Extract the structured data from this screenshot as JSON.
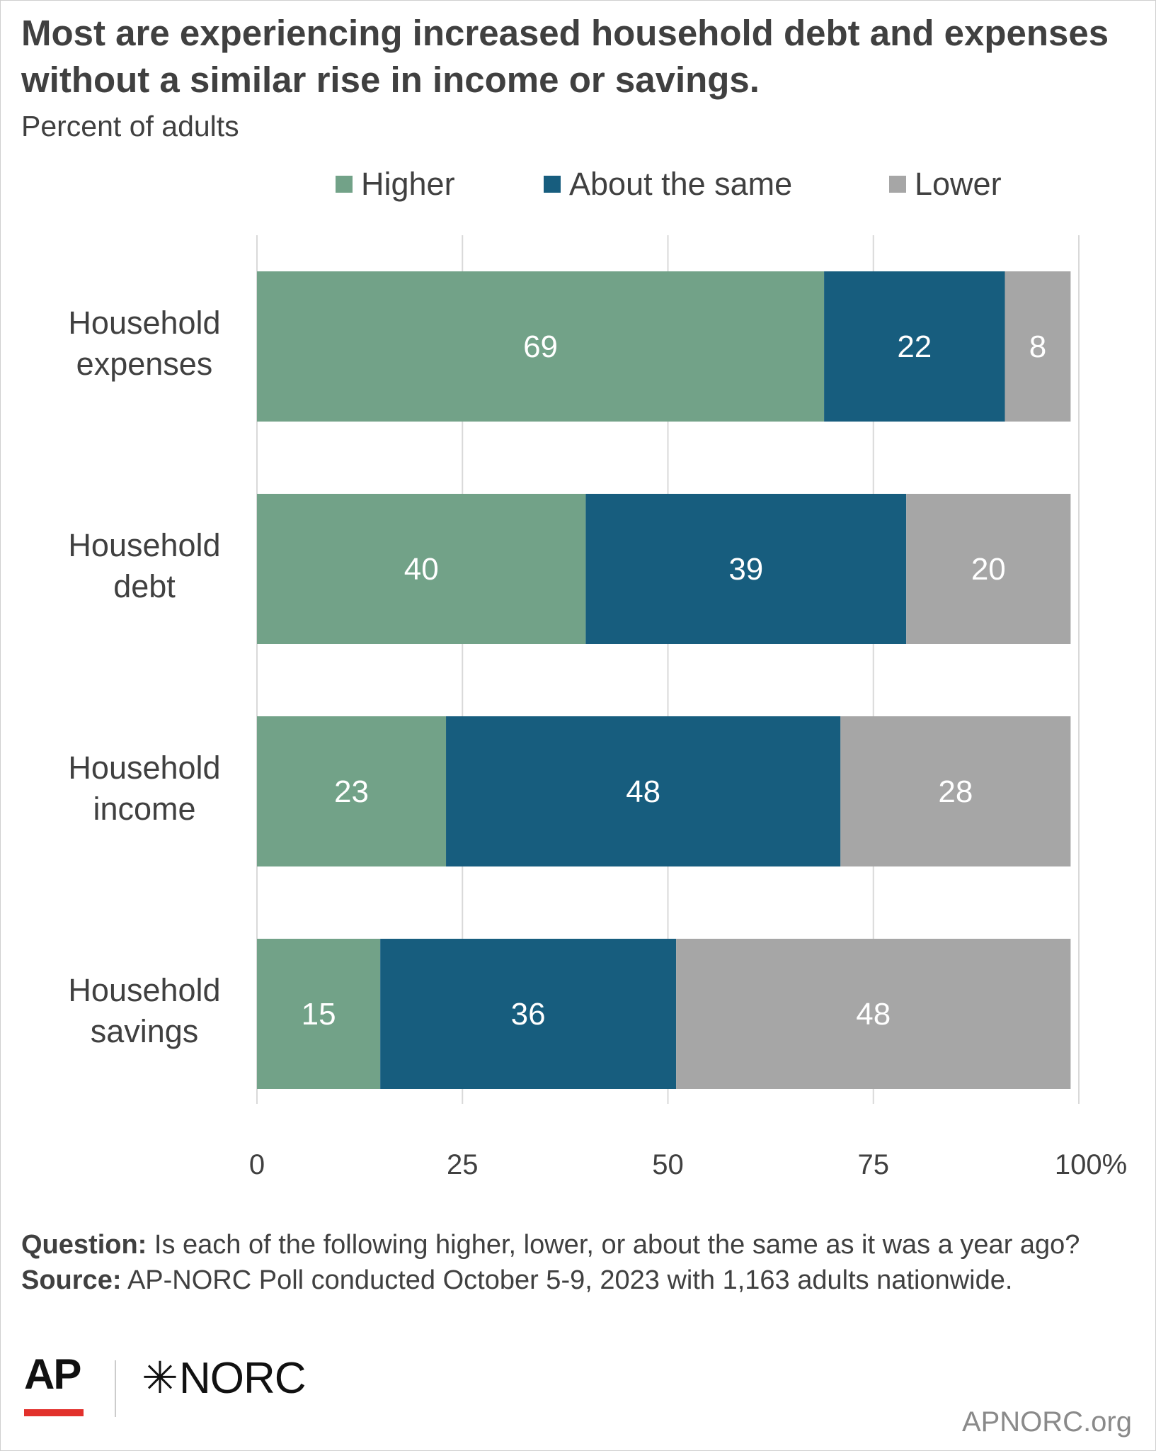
{
  "chart_data": {
    "type": "bar",
    "orientation": "horizontal",
    "stacked": true,
    "title": "Most are experiencing increased household debt and expenses without a similar rise in income or savings.",
    "subtitle": "Percent of adults",
    "categories": [
      "Household expenses",
      "Household debt",
      "Household income",
      "Household savings"
    ],
    "category_lines": [
      [
        "Household",
        "expenses"
      ],
      [
        "Household",
        "debt"
      ],
      [
        "Household",
        "income"
      ],
      [
        "Household",
        "savings"
      ]
    ],
    "series": [
      {
        "name": "Higher",
        "color": "#72a288",
        "values": [
          69,
          40,
          23,
          15
        ]
      },
      {
        "name": "About the same",
        "color": "#175d7e",
        "values": [
          22,
          39,
          48,
          36
        ]
      },
      {
        "name": "Lower",
        "color": "#a6a6a6",
        "values": [
          8,
          20,
          28,
          48
        ]
      }
    ],
    "xlim": [
      0,
      100
    ],
    "xticks": [
      0,
      25,
      50,
      75,
      100
    ],
    "xtick_labels": [
      "0",
      "25",
      "50",
      "75",
      "100%"
    ],
    "grid": true,
    "legend": "top"
  },
  "notes": {
    "question_label": "Question:",
    "question_text": "Is each of the following higher, lower, or about the same as it was a year ago?",
    "source_label": "Source:",
    "source_text": "AP-NORC Poll conducted October 5-9, 2023 with 1,163 adults nationwide."
  },
  "branding": {
    "ap_logo_text": "AP",
    "norc_logo_text": "NORC",
    "norc_star": "✳",
    "site": "APNORC.org"
  }
}
